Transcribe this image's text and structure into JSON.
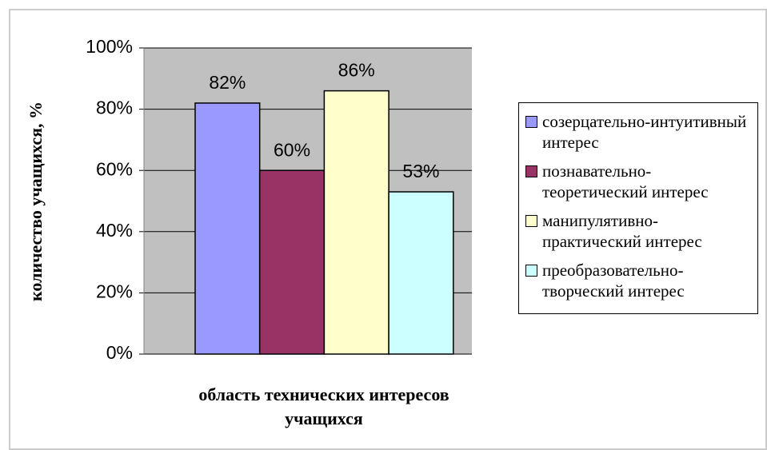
{
  "chart_data": {
    "type": "bar",
    "ylabel": "количество учащихся, %",
    "xlabel": [
      "область технических интересов",
      "учащихся"
    ],
    "series": [
      {
        "name": "созерцательно-интуитивный интерес",
        "color": "#9999ff",
        "values": [
          82
        ],
        "value_labels": [
          "82%"
        ]
      },
      {
        "name": "познавательно-теоретический интерес",
        "color": "#993366",
        "values": [
          60
        ],
        "value_labels": [
          "60%"
        ]
      },
      {
        "name": "манипулятивно-практический интерес",
        "color": "#ffffcc",
        "values": [
          86
        ],
        "value_labels": [
          "86%"
        ]
      },
      {
        "name": "преобразовательно-творческий интерес",
        "color": "#ccffff",
        "values": [
          53
        ],
        "value_labels": [
          "53%"
        ]
      }
    ],
    "ylim": [
      0,
      100
    ],
    "yticks": [
      {
        "value": 0,
        "label": "0%"
      },
      {
        "value": 20,
        "label": "20%"
      },
      {
        "value": 40,
        "label": "40%"
      },
      {
        "value": 60,
        "label": "60%"
      },
      {
        "value": 80,
        "label": "80%"
      },
      {
        "value": 100,
        "label": "100%"
      }
    ],
    "grid": true,
    "legend": "right"
  }
}
